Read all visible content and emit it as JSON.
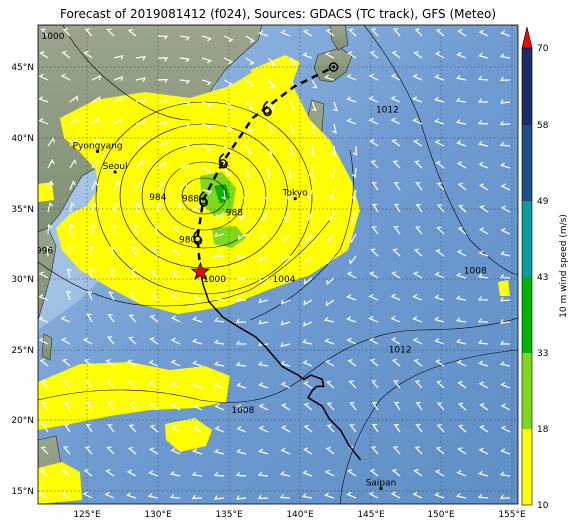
{
  "title": "Forecast of 2019081412 (f024), Sources: GDACS (TC track), GFS (Meteo)",
  "lon_ticks": [
    "125°E",
    "130°E",
    "135°E",
    "140°E",
    "145°E",
    "150°E",
    "155°E"
  ],
  "lat_ticks": [
    "45°N",
    "40°N",
    "35°N",
    "30°N",
    "25°N",
    "20°N",
    "15°N"
  ],
  "cities": [
    {
      "name": "Pyongyang",
      "lon": 125.75,
      "lat": 39.03
    },
    {
      "name": "Seoul",
      "lon": 126.98,
      "lat": 37.57
    },
    {
      "name": "Tokyo",
      "lon": 139.69,
      "lat": 35.69
    },
    {
      "name": "Saipan",
      "lon": 145.75,
      "lat": 15.18
    }
  ],
  "isobar_labels": [
    {
      "text": "1000",
      "lon": 122.6,
      "lat": 47.0
    },
    {
      "text": "1012",
      "lon": 146.2,
      "lat": 41.8
    },
    {
      "text": "984",
      "lon": 130.0,
      "lat": 35.6
    },
    {
      "text": "988",
      "lon": 132.3,
      "lat": 35.5
    },
    {
      "text": "988",
      "lon": 135.4,
      "lat": 34.5
    },
    {
      "text": "980",
      "lon": 132.1,
      "lat": 32.6
    },
    {
      "text": "996",
      "lon": 122.0,
      "lat": 31.8
    },
    {
      "text": "1000",
      "lon": 134.0,
      "lat": 29.8
    },
    {
      "text": "1004",
      "lon": 138.9,
      "lat": 29.8
    },
    {
      "text": "1008",
      "lon": 152.4,
      "lat": 30.4
    },
    {
      "text": "1012",
      "lon": 147.1,
      "lat": 24.8
    },
    {
      "text": "1008",
      "lon": 136.0,
      "lat": 20.5
    }
  ],
  "colorbar": {
    "label": "10 m wind speed (m/s)",
    "ticks": [
      "10",
      "18",
      "33",
      "43",
      "49",
      "58",
      "70"
    ],
    "colors": [
      "#ffff00",
      "#7fd91a",
      "#00b400",
      "#0a9e9e",
      "#1e4e8a",
      "#1c2b6a"
    ],
    "extend_color": "#ff0000"
  },
  "colors": {
    "ocean": "#6f9bd1",
    "land": "#8a9a82",
    "wind_swath": "#ffff00",
    "wind_strong": "#7fd91a",
    "track_observed": "#000000",
    "current_position_marker": "#ff0000"
  },
  "tc_track": {
    "observed": [
      [
        144.3,
        17.2
      ],
      [
        143.5,
        18.2
      ],
      [
        142.9,
        19.3
      ],
      [
        142.1,
        20.1
      ],
      [
        141.6,
        21.0
      ],
      [
        140.6,
        21.6
      ],
      [
        140.9,
        22.1
      ],
      [
        141.2,
        22.4
      ],
      [
        141.7,
        22.4
      ],
      [
        141.6,
        22.9
      ],
      [
        140.8,
        23.2
      ],
      [
        140.3,
        22.9
      ],
      [
        139.9,
        23.2
      ],
      [
        138.8,
        23.8
      ],
      [
        137.6,
        25.2
      ],
      [
        136.9,
        25.9
      ],
      [
        135.7,
        26.6
      ],
      [
        134.6,
        27.3
      ],
      [
        133.6,
        28.4
      ],
      [
        133.2,
        29.6
      ],
      [
        133.0,
        30.5
      ]
    ],
    "forecast": [
      [
        133.0,
        30.5
      ],
      [
        132.8,
        32.9
      ],
      [
        133.2,
        35.6
      ],
      [
        134.6,
        38.3
      ],
      [
        136.7,
        41.4
      ],
      [
        139.6,
        43.6
      ],
      [
        142.4,
        45.0
      ]
    ],
    "forecast_symbols": [
      [
        132.8,
        32.9
      ],
      [
        133.2,
        35.6
      ],
      [
        134.6,
        38.3
      ],
      [
        137.7,
        42.0
      ]
    ],
    "final_point": [
      142.4,
      45.0
    ],
    "current_position": [
      133.0,
      30.5
    ]
  }
}
